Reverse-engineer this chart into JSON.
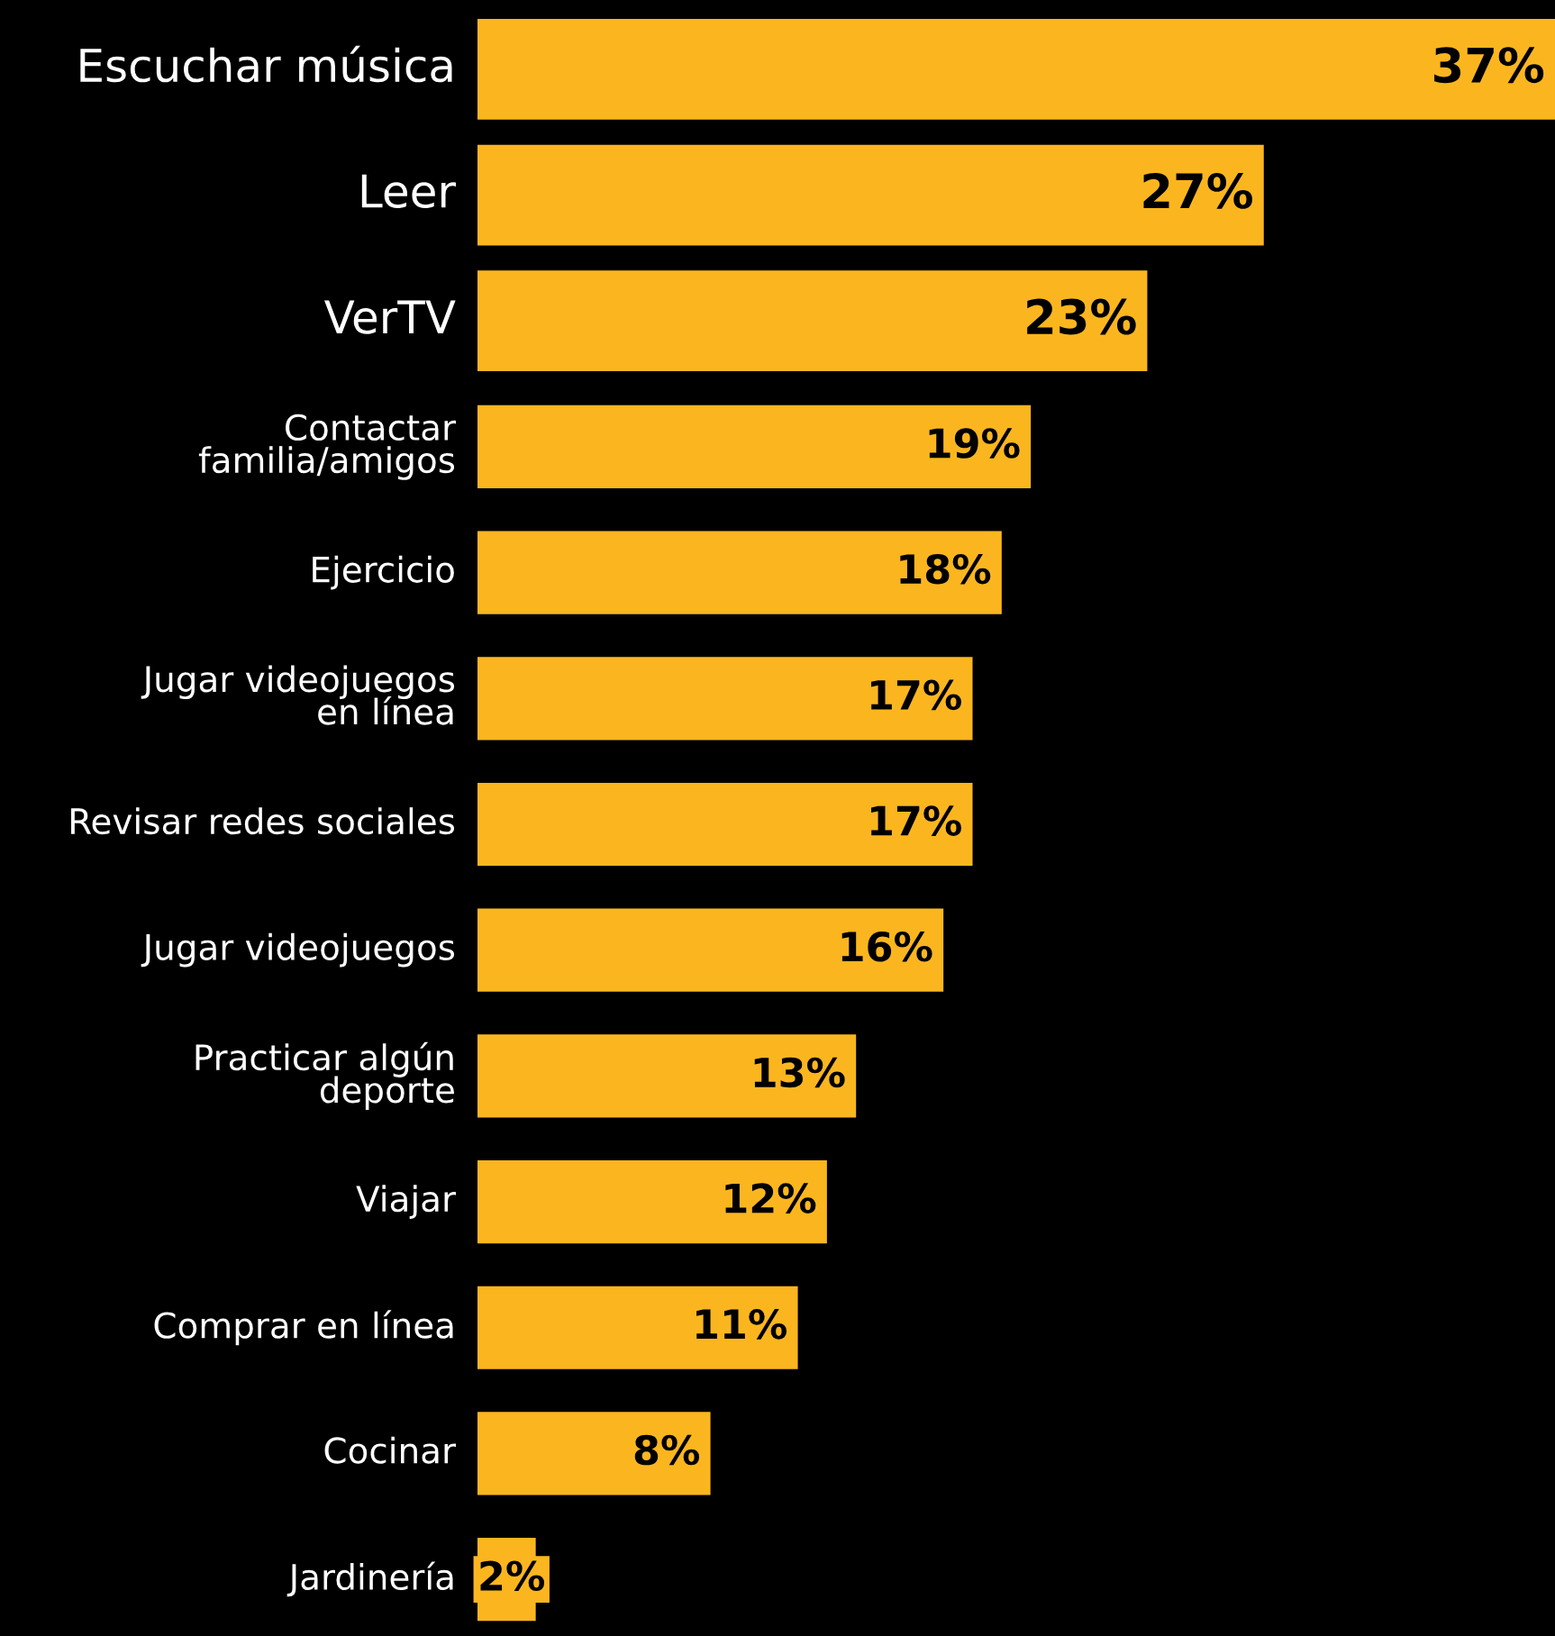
{
  "chart_data": {
    "type": "bar",
    "orientation": "horizontal",
    "categories": [
      "Escuchar música",
      "Leer",
      "VerTV",
      "Contactar\nfamilia/amigos",
      "Ejercicio",
      "Jugar videojuegos\nen línea",
      "Revisar redes sociales",
      "Jugar videojuegos",
      "Practicar algún\ndeporte",
      "Viajar",
      "Comprar en línea",
      "Cocinar",
      "Jardinería"
    ],
    "values": [
      37,
      27,
      23,
      19,
      18,
      17,
      17,
      16,
      13,
      12,
      11,
      8,
      2
    ],
    "value_labels": [
      "37%",
      "27%",
      "23%",
      "19%",
      "18%",
      "17%",
      "17%",
      "16%",
      "13%",
      "12%",
      "11%",
      "8%",
      "2%"
    ],
    "color": "#fbb61f"
  }
}
